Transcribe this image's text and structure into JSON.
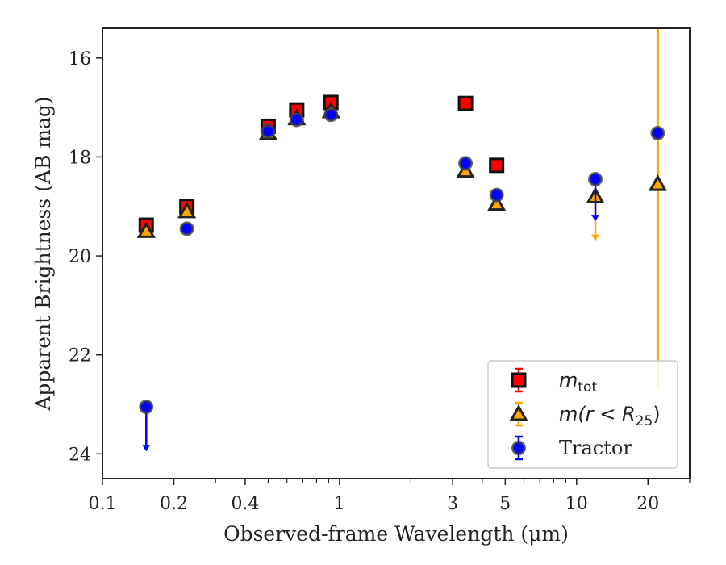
{
  "chart_data": {
    "type": "scatter",
    "xlabel": "Observed-frame Wavelength (μm)",
    "ylabel": "Apparent Brightness (AB mag)",
    "xscale": "log",
    "xlim": [
      0.1,
      30
    ],
    "ylim": [
      24.5,
      15.4
    ],
    "y_inverted": true,
    "x_ticks": [
      0.1,
      0.2,
      0.4,
      1,
      3,
      5,
      10,
      20
    ],
    "x_tick_labels": [
      "0.1",
      "0.2",
      "0.4",
      "1",
      "3",
      "5",
      "10",
      "20"
    ],
    "y_ticks": [
      16,
      18,
      20,
      22,
      24
    ],
    "y_tick_labels": [
      "16",
      "18",
      "20",
      "22",
      "24"
    ],
    "legend_position": "lower-right",
    "series": [
      {
        "name": "m_tot",
        "legend": {
          "main": "m",
          "sub": "tot"
        },
        "marker": "square",
        "color": "#ff0000",
        "edge": "#111111",
        "points": [
          {
            "x": 0.153,
            "y": 19.38
          },
          {
            "x": 0.227,
            "y": 19.0
          },
          {
            "x": 0.5,
            "y": 17.38
          },
          {
            "x": 0.66,
            "y": 17.05
          },
          {
            "x": 0.92,
            "y": 16.9
          },
          {
            "x": 3.4,
            "y": 16.92
          },
          {
            "x": 4.6,
            "y": 18.17
          }
        ]
      },
      {
        "name": "m(r < R25)",
        "legend": {
          "main": "m(r < R",
          "sub": "25",
          "tail": ")"
        },
        "marker": "triangle",
        "color": "#ffa500",
        "edge": "#222222",
        "points": [
          {
            "x": 0.153,
            "y": 19.5
          },
          {
            "x": 0.227,
            "y": 19.1
          },
          {
            "x": 0.5,
            "y": 17.52
          },
          {
            "x": 0.66,
            "y": 17.22
          },
          {
            "x": 0.92,
            "y": 17.08
          },
          {
            "x": 3.4,
            "y": 18.28
          },
          {
            "x": 4.6,
            "y": 18.95
          },
          {
            "x": 12.0,
            "y": 18.8,
            "upper_limit": true,
            "arrow_to": 19.7
          },
          {
            "x": 22.0,
            "y": 18.55,
            "error_bar": [
              15.4,
              22.7
            ]
          }
        ]
      },
      {
        "name": "Tractor",
        "legend": {
          "main": "Tractor"
        },
        "marker": "circle",
        "color": "#0000ff",
        "edge": "#444444",
        "points": [
          {
            "x": 0.153,
            "y": 23.05,
            "upper_limit": true,
            "arrow_to": 23.95
          },
          {
            "x": 0.227,
            "y": 19.45
          },
          {
            "x": 0.5,
            "y": 17.48
          },
          {
            "x": 0.66,
            "y": 17.25
          },
          {
            "x": 0.92,
            "y": 17.15
          },
          {
            "x": 3.4,
            "y": 18.13
          },
          {
            "x": 4.6,
            "y": 18.77
          },
          {
            "x": 12.0,
            "y": 18.45,
            "upper_limit": true,
            "arrow_to": 19.3
          },
          {
            "x": 22.0,
            "y": 17.52
          }
        ]
      }
    ]
  }
}
